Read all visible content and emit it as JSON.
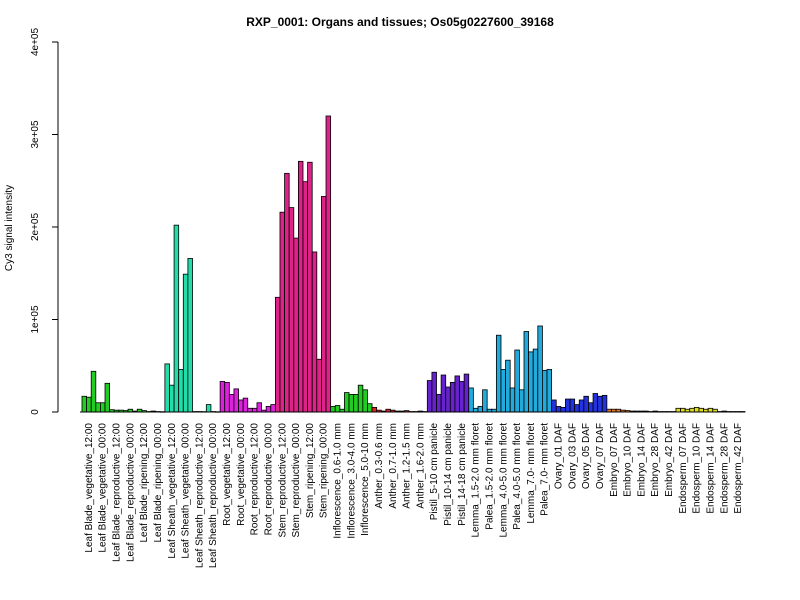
{
  "chart_data": {
    "type": "bar",
    "title": "RXP_0001: Organs and tissues; Os05g0227600_39168",
    "xlabel": "",
    "ylabel": "Cy3 signal intensity",
    "ylim": [
      0,
      400000
    ],
    "yticks": [
      {
        "value": 0,
        "label": "0"
      },
      {
        "value": 100000,
        "label": "1e+05"
      },
      {
        "value": 200000,
        "label": "2e+05"
      },
      {
        "value": 300000,
        "label": "3e+05"
      },
      {
        "value": 400000,
        "label": "4e+05"
      }
    ],
    "grid": false,
    "legend": "none",
    "groups": [
      {
        "label": "Leaf Blade_vegetative_12:00",
        "color": "#22cc22",
        "values": [
          17000,
          16000,
          44000
        ]
      },
      {
        "label": "Leaf Blade_vegetative_00:00",
        "color": "#22cc22",
        "values": [
          10000,
          10000,
          31000
        ]
      },
      {
        "label": "Leaf Blade_reproductive_12:00",
        "color": "#22cc22",
        "values": [
          2500,
          2000,
          2000
        ]
      },
      {
        "label": "Leaf Blade_reproductive_00:00",
        "color": "#22cc22",
        "values": [
          1500,
          3000,
          1000
        ]
      },
      {
        "label": "Leaf Blade_ripening_12:00",
        "color": "#22cc22",
        "values": [
          3000,
          1500,
          500
        ]
      },
      {
        "label": "Leaf Blade_ripening_00:00",
        "color": "#22cc22",
        "values": [
          1000,
          500,
          300
        ]
      },
      {
        "label": "Leaf Sheath_vegetative_12:00",
        "color": "#22ddaa",
        "values": [
          52000,
          29000,
          202000
        ]
      },
      {
        "label": "Leaf Sheath_vegetative_00:00",
        "color": "#22ddaa",
        "values": [
          46000,
          149000,
          166000
        ]
      },
      {
        "label": "Leaf Sheath_reproductive_12:00",
        "color": "#22ddaa",
        "values": [
          500,
          500,
          400
        ]
      },
      {
        "label": "Leaf Sheath_reproductive_00:00",
        "color": "#22ddaa",
        "values": [
          8000,
          500,
          300
        ]
      },
      {
        "label": "Root_vegetative_12:00",
        "color": "#dd22dd",
        "values": [
          33000,
          32000,
          19000
        ]
      },
      {
        "label": "Root_vegetative_00:00",
        "color": "#dd22dd",
        "values": [
          25000,
          13000,
          15000
        ]
      },
      {
        "label": "Root_reproductive_12:00",
        "color": "#dd22dd",
        "values": [
          4000,
          4000,
          10000
        ]
      },
      {
        "label": "Root_reproductive_00:00",
        "color": "#dd22dd",
        "values": [
          2000,
          6000,
          8000
        ]
      },
      {
        "label": "Stem_reproductive_12:00",
        "color": "#dd2288",
        "values": [
          124000,
          216000,
          258000
        ]
      },
      {
        "label": "Stem_reproductive_00:00",
        "color": "#dd2288",
        "values": [
          221000,
          188000,
          271000
        ]
      },
      {
        "label": "Stem_ripening_12:00",
        "color": "#dd2288",
        "values": [
          249000,
          270000,
          173000
        ]
      },
      {
        "label": "Stem_ripening_00:00",
        "color": "#dd2288",
        "values": [
          57000,
          233000,
          320000
        ]
      },
      {
        "label": "Inflorescence_0.6-1.0 mm",
        "color": "#22cc22",
        "values": [
          6000,
          7000,
          3000
        ]
      },
      {
        "label": "Inflorescence_3.0-4.0 mm",
        "color": "#22cc22",
        "values": [
          21000,
          19000,
          19000
        ]
      },
      {
        "label": "Inflorescence_5.0-10 mm",
        "color": "#22cc22",
        "values": [
          29000,
          24000,
          9000
        ]
      },
      {
        "label": "Anther_0.3-0.6 mm",
        "color": "#dd2222",
        "values": [
          5000,
          2000,
          1000
        ]
      },
      {
        "label": "Anther_0.7-1.0 mm",
        "color": "#dd2222",
        "values": [
          3000,
          2000,
          1000
        ]
      },
      {
        "label": "Anther_1.2-1.5 mm",
        "color": "#dd2222",
        "values": [
          1000,
          1500,
          500
        ]
      },
      {
        "label": "Anther_1.6-2.0 mm",
        "color": "#dd2222",
        "values": [
          500,
          1000,
          500
        ]
      },
      {
        "label": "Pistil_5-10 cm panicle",
        "color": "#6622cc",
        "values": [
          34000,
          43000,
          19000
        ]
      },
      {
        "label": "Pistil_10-14 cm panicle",
        "color": "#6622cc",
        "values": [
          40000,
          27000,
          32000
        ]
      },
      {
        "label": "Pistil_14-18 cm panicle",
        "color": "#6622cc",
        "values": [
          39000,
          33000,
          41000
        ]
      },
      {
        "label": "Lemma_1.5-2.0 mm floret",
        "color": "#22aadd",
        "values": [
          26000,
          4000,
          6000
        ]
      },
      {
        "label": "Palea_1.5-2.0 mm floret",
        "color": "#22aadd",
        "values": [
          24000,
          3000,
          3000
        ]
      },
      {
        "label": "Lemma_4.0-5.0 mm floret",
        "color": "#22aadd",
        "values": [
          83000,
          46000,
          56000
        ]
      },
      {
        "label": "Palea_4.0-5.0 mm floret",
        "color": "#22aadd",
        "values": [
          26000,
          67000,
          24000
        ]
      },
      {
        "label": "Lemma_7.0- mm floret",
        "color": "#22aadd",
        "values": [
          87000,
          65000,
          68000
        ]
      },
      {
        "label": "Palea_7.0- mm floret",
        "color": "#22aadd",
        "values": [
          93000,
          45000,
          46000
        ]
      },
      {
        "label": "Ovary_01 DAF",
        "color": "#2233dd",
        "values": [
          13000,
          6000,
          5000
        ]
      },
      {
        "label": "Ovary_03 DAF",
        "color": "#2233dd",
        "values": [
          14000,
          14000,
          8000
        ]
      },
      {
        "label": "Ovary_05 DAF",
        "color": "#2233dd",
        "values": [
          13000,
          17000,
          10000
        ]
      },
      {
        "label": "Ovary_07 DAF",
        "color": "#2233dd",
        "values": [
          20000,
          17000,
          18000
        ]
      },
      {
        "label": "Embryo_07 DAF",
        "color": "#dd7722",
        "values": [
          3000,
          3000,
          3000
        ]
      },
      {
        "label": "Embryo_10 DAF",
        "color": "#dd7722",
        "values": [
          2000,
          1500,
          1000
        ]
      },
      {
        "label": "Embryo_14 DAF",
        "color": "#dd7722",
        "values": [
          1000,
          1000,
          1000
        ]
      },
      {
        "label": "Embryo_28 DAF",
        "color": "#dd7722",
        "values": [
          500,
          1000,
          500
        ]
      },
      {
        "label": "Embryo_42 DAF",
        "color": "#dd7722",
        "values": [
          500,
          500,
          500
        ]
      },
      {
        "label": "Endosperm_07 DAF",
        "color": "#dddd22",
        "values": [
          4000,
          4000,
          3000
        ]
      },
      {
        "label": "Endosperm_10 DAF",
        "color": "#dddd22",
        "values": [
          4000,
          5000,
          4000
        ]
      },
      {
        "label": "Endosperm_14 DAF",
        "color": "#dddd22",
        "values": [
          3000,
          4000,
          3000
        ]
      },
      {
        "label": "Endosperm_28 DAF",
        "color": "#dddd22",
        "values": [
          500,
          1000,
          500
        ]
      },
      {
        "label": "Endosperm_42 DAF",
        "color": "#dddd22",
        "values": [
          500,
          500,
          500
        ]
      }
    ]
  }
}
